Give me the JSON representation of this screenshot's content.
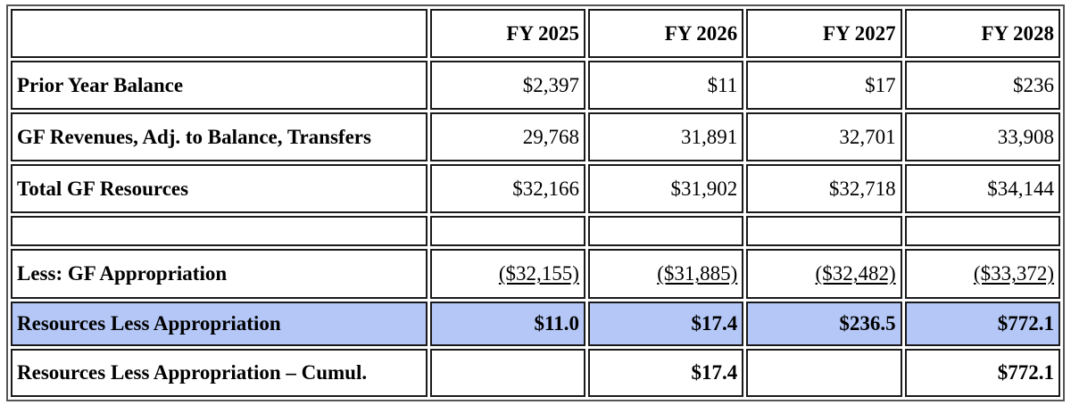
{
  "table": {
    "headers": [
      "",
      "FY 2025",
      "FY 2026",
      "FY 2027",
      "FY 2028"
    ],
    "rows": [
      {
        "label": "Prior Year Balance",
        "values": [
          "$2,397",
          "$11",
          "$17",
          "$236"
        ]
      },
      {
        "label": "GF Revenues, Adj. to Balance, Transfers",
        "values": [
          "29,768",
          "31,891",
          "32,701",
          "33,908"
        ]
      },
      {
        "label": "Total GF Resources",
        "values": [
          "$32,166",
          "$31,902",
          "$32,718",
          "$34,144"
        ]
      },
      {
        "label": "",
        "values": [
          "",
          "",
          "",
          ""
        ]
      },
      {
        "label": "Less: GF Appropriation",
        "values": [
          "($32,155)",
          "($31,885)",
          "($32,482)",
          "($33,372)"
        ]
      },
      {
        "label": "Resources Less Appropriation",
        "values": [
          "$11.0",
          "$17.4",
          "$236.5",
          "$772.1"
        ]
      },
      {
        "label": "Resources Less Appropriation – Cumul.",
        "values": [
          "",
          "$17.4",
          "",
          "$772.1"
        ]
      }
    ]
  },
  "colors": {
    "highlight_row": "#b4c7f7",
    "border": "#1a1a1a"
  }
}
